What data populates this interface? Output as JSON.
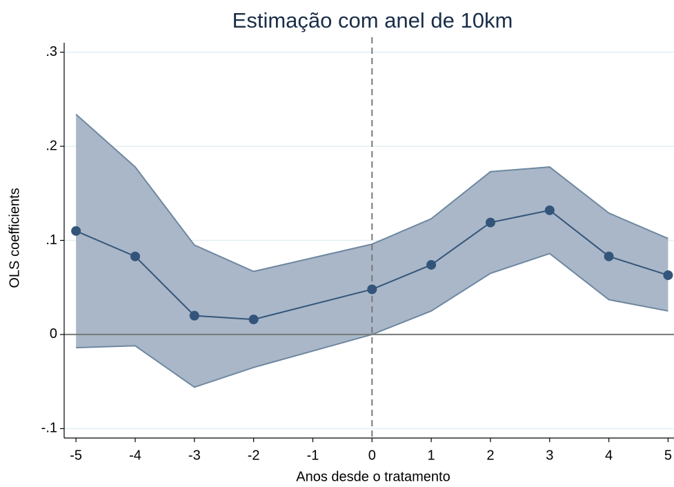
{
  "chart_data": {
    "type": "line",
    "title": "Estimação com anel de 10km",
    "x_label": "Anos desde o tratamento",
    "y_label": "OLS coefficients",
    "x": [
      -5,
      -4,
      -3,
      -2,
      0,
      1,
      2,
      3,
      4,
      5
    ],
    "values": [
      0.11,
      0.083,
      0.02,
      0.016,
      0.048,
      0.074,
      0.119,
      0.132,
      0.083,
      0.063
    ],
    "ci_upper": [
      0.234,
      0.178,
      0.095,
      0.067,
      0.096,
      0.123,
      0.173,
      0.178,
      0.129,
      0.102
    ],
    "ci_lower": [
      -0.014,
      -0.012,
      -0.056,
      -0.035,
      0.0,
      0.025,
      0.065,
      0.086,
      0.037,
      0.025
    ],
    "color": "#34557a",
    "band_color": "#a9b7c8",
    "band_edge_color": "#6d87a0",
    "xlim": [
      -5.2,
      5.1
    ],
    "ylim": [
      -0.11,
      0.31
    ],
    "xticks": [
      -5,
      -4,
      -3,
      -2,
      -1,
      0,
      1,
      2,
      3,
      4,
      5
    ],
    "yticks": [
      {
        "value": -0.1,
        "label": "-.1"
      },
      0,
      {
        "value": 0.1,
        "label": ".1"
      },
      {
        "value": 0.2,
        "label": ".2"
      },
      {
        "value": 0.3,
        "label": ".3"
      }
    ],
    "grid": true,
    "reference_x": 0,
    "reference_y": 0
  }
}
